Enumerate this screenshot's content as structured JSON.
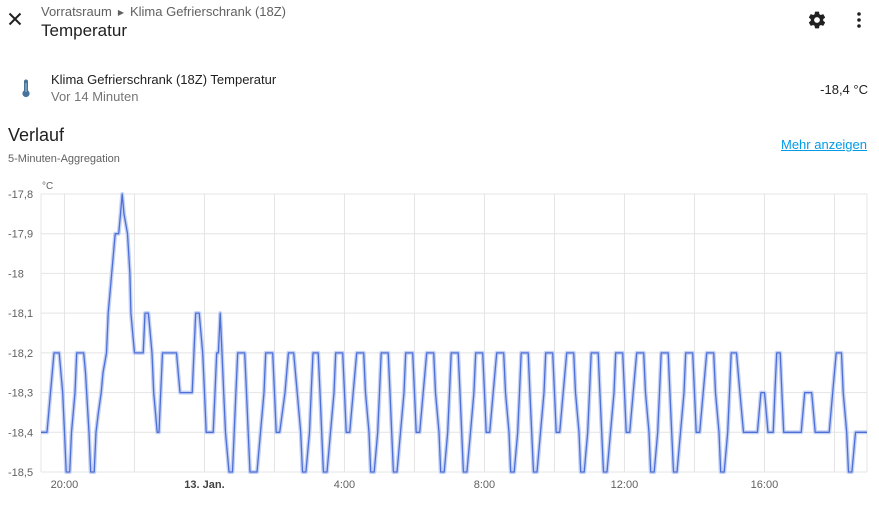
{
  "header": {
    "breadcrumb": [
      "Vorratsraum",
      "Klima Gefrierschrank (18Z)"
    ],
    "title": "Temperatur",
    "icons": {
      "close": "close-icon",
      "settings": "gear-icon",
      "menu": "dots-vertical-icon"
    }
  },
  "entity": {
    "icon": "thermometer-icon",
    "name": "Klima Gefrierschrank (18Z) Temperatur",
    "last_changed": "Vor 14 Minuten",
    "state": "-18,4 °C"
  },
  "history": {
    "title": "Verlauf",
    "subtitle": "5-Minuten-Aggregation",
    "show_more": "Mehr anzeigen"
  },
  "colors": {
    "line": "#4e6fd6",
    "line_halo": "#c5d2f5",
    "link": "#039be5",
    "grid": "#e4e4e4"
  },
  "chart_data": {
    "type": "line",
    "unit": "°C",
    "ylim": [
      -18.5,
      -17.8
    ],
    "y_ticks": [
      "-17,8",
      "-17,9",
      "-18",
      "-18,1",
      "-18,2",
      "-18,3",
      "-18,4",
      "-18,5"
    ],
    "y_tick_values": [
      -17.8,
      -17.9,
      -18.0,
      -18.1,
      -18.2,
      -18.3,
      -18.4,
      -18.5
    ],
    "x_range_hours": [
      19.33,
      42.93
    ],
    "x_ticks": [
      {
        "label": "20:00",
        "t": 20,
        "bold": false
      },
      {
        "label": "13. Jan.",
        "t": 24,
        "bold": true
      },
      {
        "label": "4:00",
        "t": 28,
        "bold": false
      },
      {
        "label": "8:00",
        "t": 32,
        "bold": false
      },
      {
        "label": "12:00",
        "t": 36,
        "bold": false
      },
      {
        "label": "16:00",
        "t": 40,
        "bold": false
      }
    ],
    "grid": true,
    "series": [
      {
        "points": [
          [
            19.33,
            -18.4
          ],
          [
            19.5,
            -18.4
          ],
          [
            19.6,
            -18.3
          ],
          [
            19.7,
            -18.2
          ],
          [
            19.85,
            -18.2
          ],
          [
            19.95,
            -18.3
          ],
          [
            20.0,
            -18.4
          ],
          [
            20.05,
            -18.5
          ],
          [
            20.15,
            -18.5
          ],
          [
            20.2,
            -18.4
          ],
          [
            20.3,
            -18.3
          ],
          [
            20.35,
            -18.2
          ],
          [
            20.55,
            -18.2
          ],
          [
            20.6,
            -18.25
          ],
          [
            20.7,
            -18.4
          ],
          [
            20.75,
            -18.5
          ],
          [
            20.85,
            -18.5
          ],
          [
            20.9,
            -18.4
          ],
          [
            20.97,
            -18.35
          ],
          [
            21.05,
            -18.3
          ],
          [
            21.1,
            -18.25
          ],
          [
            21.2,
            -18.2
          ],
          [
            21.25,
            -18.1
          ],
          [
            21.35,
            -18.0
          ],
          [
            21.45,
            -17.9
          ],
          [
            21.55,
            -17.9
          ],
          [
            21.6,
            -17.85
          ],
          [
            21.65,
            -17.8
          ],
          [
            21.7,
            -17.85
          ],
          [
            21.8,
            -17.9
          ],
          [
            21.87,
            -18.0
          ],
          [
            21.9,
            -18.1
          ],
          [
            22.0,
            -18.2
          ],
          [
            22.25,
            -18.2
          ],
          [
            22.3,
            -18.1
          ],
          [
            22.4,
            -18.1
          ],
          [
            22.5,
            -18.2
          ],
          [
            22.55,
            -18.3
          ],
          [
            22.65,
            -18.4
          ],
          [
            22.7,
            -18.4
          ],
          [
            22.75,
            -18.3
          ],
          [
            22.8,
            -18.2
          ],
          [
            23.2,
            -18.2
          ],
          [
            23.3,
            -18.3
          ],
          [
            23.65,
            -18.3
          ],
          [
            23.75,
            -18.1
          ],
          [
            23.85,
            -18.1
          ],
          [
            23.95,
            -18.2
          ],
          [
            24.0,
            -18.3
          ],
          [
            24.05,
            -18.4
          ],
          [
            24.25,
            -18.4
          ],
          [
            24.3,
            -18.3
          ],
          [
            24.35,
            -18.2
          ],
          [
            24.4,
            -18.2
          ],
          [
            24.45,
            -18.1
          ],
          [
            24.5,
            -18.2
          ],
          [
            24.55,
            -18.3
          ],
          [
            24.6,
            -18.4
          ],
          [
            24.7,
            -18.5
          ],
          [
            24.8,
            -18.5
          ],
          [
            24.9,
            -18.3
          ],
          [
            24.95,
            -18.2
          ],
          [
            25.15,
            -18.2
          ],
          [
            25.2,
            -18.3
          ],
          [
            25.25,
            -18.4
          ],
          [
            25.3,
            -18.5
          ],
          [
            25.5,
            -18.5
          ],
          [
            25.6,
            -18.4
          ],
          [
            25.7,
            -18.3
          ],
          [
            25.75,
            -18.2
          ],
          [
            25.95,
            -18.2
          ],
          [
            26.0,
            -18.3
          ],
          [
            26.05,
            -18.4
          ],
          [
            26.15,
            -18.4
          ],
          [
            26.3,
            -18.3
          ],
          [
            26.4,
            -18.2
          ],
          [
            26.55,
            -18.2
          ],
          [
            26.65,
            -18.3
          ],
          [
            26.75,
            -18.4
          ],
          [
            26.8,
            -18.5
          ],
          [
            26.9,
            -18.5
          ],
          [
            27.0,
            -18.4
          ],
          [
            27.05,
            -18.3
          ],
          [
            27.1,
            -18.2
          ],
          [
            27.25,
            -18.2
          ],
          [
            27.3,
            -18.3
          ],
          [
            27.35,
            -18.4
          ],
          [
            27.4,
            -18.5
          ],
          [
            27.5,
            -18.5
          ],
          [
            27.6,
            -18.4
          ],
          [
            27.7,
            -18.3
          ],
          [
            27.75,
            -18.2
          ],
          [
            27.95,
            -18.2
          ],
          [
            28.0,
            -18.3
          ],
          [
            28.05,
            -18.4
          ],
          [
            28.15,
            -18.4
          ],
          [
            28.25,
            -18.3
          ],
          [
            28.35,
            -18.2
          ],
          [
            28.55,
            -18.2
          ],
          [
            28.6,
            -18.3
          ],
          [
            28.7,
            -18.4
          ],
          [
            28.75,
            -18.5
          ],
          [
            28.85,
            -18.5
          ],
          [
            28.95,
            -18.4
          ],
          [
            29.0,
            -18.3
          ],
          [
            29.05,
            -18.2
          ],
          [
            29.25,
            -18.2
          ],
          [
            29.3,
            -18.3
          ],
          [
            29.35,
            -18.4
          ],
          [
            29.4,
            -18.5
          ],
          [
            29.5,
            -18.5
          ],
          [
            29.6,
            -18.4
          ],
          [
            29.7,
            -18.3
          ],
          [
            29.75,
            -18.2
          ],
          [
            29.95,
            -18.2
          ],
          [
            30.0,
            -18.3
          ],
          [
            30.05,
            -18.4
          ],
          [
            30.15,
            -18.4
          ],
          [
            30.25,
            -18.3
          ],
          [
            30.35,
            -18.2
          ],
          [
            30.55,
            -18.2
          ],
          [
            30.6,
            -18.3
          ],
          [
            30.7,
            -18.4
          ],
          [
            30.75,
            -18.5
          ],
          [
            30.85,
            -18.5
          ],
          [
            30.95,
            -18.4
          ],
          [
            31.0,
            -18.3
          ],
          [
            31.05,
            -18.2
          ],
          [
            31.25,
            -18.2
          ],
          [
            31.3,
            -18.3
          ],
          [
            31.35,
            -18.4
          ],
          [
            31.4,
            -18.5
          ],
          [
            31.5,
            -18.5
          ],
          [
            31.6,
            -18.4
          ],
          [
            31.7,
            -18.3
          ],
          [
            31.75,
            -18.2
          ],
          [
            31.95,
            -18.2
          ],
          [
            32.0,
            -18.3
          ],
          [
            32.05,
            -18.4
          ],
          [
            32.15,
            -18.4
          ],
          [
            32.25,
            -18.3
          ],
          [
            32.35,
            -18.2
          ],
          [
            32.55,
            -18.2
          ],
          [
            32.6,
            -18.3
          ],
          [
            32.7,
            -18.4
          ],
          [
            32.75,
            -18.5
          ],
          [
            32.85,
            -18.5
          ],
          [
            32.95,
            -18.4
          ],
          [
            33.0,
            -18.3
          ],
          [
            33.05,
            -18.2
          ],
          [
            33.25,
            -18.2
          ],
          [
            33.3,
            -18.3
          ],
          [
            33.35,
            -18.4
          ],
          [
            33.4,
            -18.5
          ],
          [
            33.5,
            -18.5
          ],
          [
            33.6,
            -18.4
          ],
          [
            33.7,
            -18.3
          ],
          [
            33.75,
            -18.2
          ],
          [
            33.95,
            -18.2
          ],
          [
            34.0,
            -18.3
          ],
          [
            34.05,
            -18.4
          ],
          [
            34.15,
            -18.4
          ],
          [
            34.25,
            -18.3
          ],
          [
            34.35,
            -18.2
          ],
          [
            34.55,
            -18.2
          ],
          [
            34.6,
            -18.3
          ],
          [
            34.7,
            -18.4
          ],
          [
            34.75,
            -18.5
          ],
          [
            34.85,
            -18.5
          ],
          [
            34.95,
            -18.4
          ],
          [
            35.0,
            -18.3
          ],
          [
            35.05,
            -18.2
          ],
          [
            35.25,
            -18.2
          ],
          [
            35.3,
            -18.3
          ],
          [
            35.35,
            -18.4
          ],
          [
            35.4,
            -18.5
          ],
          [
            35.5,
            -18.5
          ],
          [
            35.6,
            -18.4
          ],
          [
            35.7,
            -18.3
          ],
          [
            35.75,
            -18.2
          ],
          [
            35.95,
            -18.2
          ],
          [
            36.0,
            -18.3
          ],
          [
            36.05,
            -18.4
          ],
          [
            36.15,
            -18.4
          ],
          [
            36.25,
            -18.3
          ],
          [
            36.35,
            -18.2
          ],
          [
            36.55,
            -18.2
          ],
          [
            36.6,
            -18.3
          ],
          [
            36.7,
            -18.4
          ],
          [
            36.75,
            -18.5
          ],
          [
            36.85,
            -18.5
          ],
          [
            36.95,
            -18.4
          ],
          [
            37.0,
            -18.3
          ],
          [
            37.05,
            -18.2
          ],
          [
            37.25,
            -18.2
          ],
          [
            37.3,
            -18.3
          ],
          [
            37.35,
            -18.4
          ],
          [
            37.4,
            -18.5
          ],
          [
            37.5,
            -18.5
          ],
          [
            37.6,
            -18.4
          ],
          [
            37.7,
            -18.3
          ],
          [
            37.75,
            -18.2
          ],
          [
            37.95,
            -18.2
          ],
          [
            38.0,
            -18.3
          ],
          [
            38.05,
            -18.4
          ],
          [
            38.15,
            -18.4
          ],
          [
            38.25,
            -18.3
          ],
          [
            38.35,
            -18.2
          ],
          [
            38.55,
            -18.2
          ],
          [
            38.6,
            -18.3
          ],
          [
            38.7,
            -18.4
          ],
          [
            38.75,
            -18.5
          ],
          [
            38.85,
            -18.5
          ],
          [
            38.95,
            -18.4
          ],
          [
            39.0,
            -18.3
          ],
          [
            39.05,
            -18.2
          ],
          [
            39.2,
            -18.2
          ],
          [
            39.3,
            -18.3
          ],
          [
            39.4,
            -18.4
          ],
          [
            39.8,
            -18.4
          ],
          [
            39.9,
            -18.3
          ],
          [
            40.0,
            -18.3
          ],
          [
            40.1,
            -18.4
          ],
          [
            40.25,
            -18.4
          ],
          [
            40.3,
            -18.3
          ],
          [
            40.35,
            -18.2
          ],
          [
            40.45,
            -18.2
          ],
          [
            40.5,
            -18.3
          ],
          [
            40.55,
            -18.4
          ],
          [
            41.05,
            -18.4
          ],
          [
            41.15,
            -18.3
          ],
          [
            41.35,
            -18.3
          ],
          [
            41.45,
            -18.4
          ],
          [
            41.85,
            -18.4
          ],
          [
            41.95,
            -18.3
          ],
          [
            42.05,
            -18.2
          ],
          [
            42.2,
            -18.2
          ],
          [
            42.25,
            -18.3
          ],
          [
            42.35,
            -18.4
          ],
          [
            42.4,
            -18.5
          ],
          [
            42.5,
            -18.5
          ],
          [
            42.6,
            -18.4
          ],
          [
            42.7,
            -18.4
          ],
          [
            42.93,
            -18.4
          ]
        ]
      }
    ]
  }
}
